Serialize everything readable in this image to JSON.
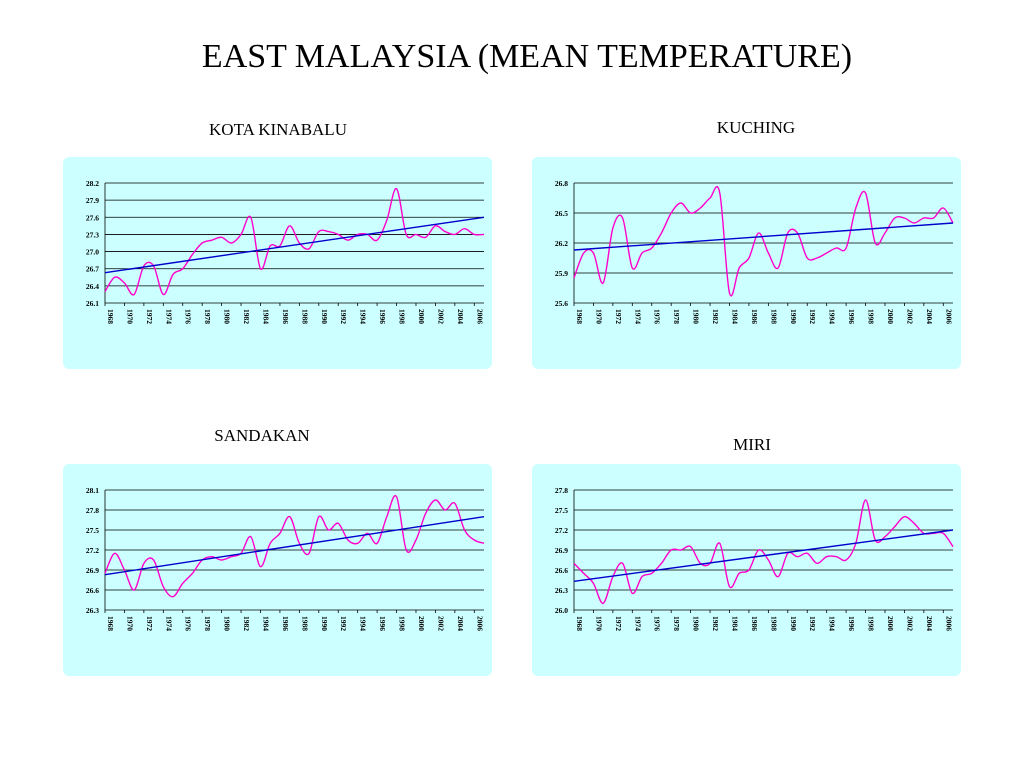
{
  "page": {
    "title": "EAST MALAYSIA (MEAN TEMPERATURE)"
  },
  "chart_data": [
    {
      "type": "line",
      "title": "KOTA KINABALU",
      "ylim": [
        26.1,
        28.2
      ],
      "yticks": [
        "28.2",
        "27.9",
        "27.6",
        "27.3",
        "27.0",
        "26.7",
        "26.4",
        "26.1"
      ],
      "xticks": [
        "1968",
        "1970",
        "1972",
        "1974",
        "1976",
        "1978",
        "1980",
        "1982",
        "1984",
        "1986",
        "1988",
        "1990",
        "1992",
        "1994",
        "1996",
        "1998",
        "2000",
        "2002",
        "2004",
        "2006"
      ],
      "xlim": [
        1968,
        2007
      ],
      "series": [
        {
          "color": "#ff00cc",
          "kind": "data",
          "x": [
            1968,
            1969,
            1970,
            1971,
            1972,
            1973,
            1974,
            1975,
            1976,
            1977,
            1978,
            1979,
            1980,
            1981,
            1982,
            1983,
            1984,
            1985,
            1986,
            1987,
            1988,
            1989,
            1990,
            1991,
            1992,
            1993,
            1994,
            1995,
            1996,
            1997,
            1998,
            1999,
            2000,
            2001,
            2002,
            2003,
            2004,
            2005,
            2006,
            2007
          ],
          "y": [
            26.3,
            26.55,
            26.45,
            26.25,
            26.75,
            26.75,
            26.25,
            26.6,
            26.7,
            26.95,
            27.15,
            27.2,
            27.25,
            27.15,
            27.3,
            27.6,
            26.7,
            27.1,
            27.1,
            27.45,
            27.15,
            27.05,
            27.35,
            27.35,
            27.3,
            27.2,
            27.3,
            27.3,
            27.2,
            27.55,
            28.1,
            27.3,
            27.3,
            27.25,
            27.45,
            27.35,
            27.3,
            27.4,
            27.3,
            27.3
          ]
        },
        {
          "color": "#0000cc",
          "kind": "trend",
          "x": [
            1968,
            2007
          ],
          "y": [
            26.63,
            27.6
          ]
        }
      ]
    },
    {
      "type": "line",
      "title": "KUCHING",
      "ylim": [
        25.6,
        26.8
      ],
      "yticks": [
        "26.8",
        "26.5",
        "26.2",
        "25.9",
        "25.6"
      ],
      "xticks": [
        "1968",
        "1970",
        "1972",
        "1974",
        "1976",
        "1978",
        "1980",
        "1982",
        "1984",
        "1986",
        "1988",
        "1990",
        "1992",
        "1994",
        "1996",
        "1998",
        "2000",
        "2002",
        "2004",
        "2006"
      ],
      "xlim": [
        1968,
        2007
      ],
      "series": [
        {
          "color": "#ff00cc",
          "kind": "data",
          "x": [
            1968,
            1969,
            1970,
            1971,
            1972,
            1973,
            1974,
            1975,
            1976,
            1977,
            1978,
            1979,
            1980,
            1981,
            1982,
            1983,
            1984,
            1985,
            1986,
            1987,
            1988,
            1989,
            1990,
            1991,
            1992,
            1993,
            1994,
            1995,
            1996,
            1997,
            1998,
            1999,
            2000,
            2001,
            2002,
            2003,
            2004,
            2005,
            2006,
            2007
          ],
          "y": [
            25.85,
            26.1,
            26.1,
            25.8,
            26.35,
            26.45,
            25.95,
            26.1,
            26.15,
            26.3,
            26.5,
            26.6,
            26.5,
            26.55,
            26.65,
            26.7,
            25.7,
            25.95,
            26.05,
            26.3,
            26.1,
            25.95,
            26.3,
            26.3,
            26.05,
            26.05,
            26.1,
            26.15,
            26.15,
            26.55,
            26.7,
            26.2,
            26.3,
            26.45,
            26.45,
            26.4,
            26.45,
            26.45,
            26.55,
            26.4
          ]
        },
        {
          "color": "#0000cc",
          "kind": "trend",
          "x": [
            1968,
            2007
          ],
          "y": [
            26.13,
            26.4
          ]
        }
      ]
    },
    {
      "type": "line",
      "title": "SANDAKAN",
      "ylim": [
        26.3,
        28.1
      ],
      "yticks": [
        "28.1",
        "27.8",
        "27.5",
        "27.2",
        "26.9",
        "26.6",
        "26.3"
      ],
      "xticks": [
        "1968",
        "1970",
        "1972",
        "1974",
        "1976",
        "1978",
        "1980",
        "1982",
        "1984",
        "1986",
        "1988",
        "1990",
        "1992",
        "1994",
        "1996",
        "1998",
        "2000",
        "2002",
        "2004",
        "2006"
      ],
      "xlim": [
        1968,
        2007
      ],
      "series": [
        {
          "color": "#ff00cc",
          "kind": "data",
          "x": [
            1968,
            1969,
            1970,
            1971,
            1972,
            1973,
            1974,
            1975,
            1976,
            1977,
            1978,
            1979,
            1980,
            1981,
            1982,
            1983,
            1984,
            1985,
            1986,
            1987,
            1988,
            1989,
            1990,
            1991,
            1992,
            1993,
            1994,
            1995,
            1996,
            1997,
            1998,
            1999,
            2000,
            2001,
            2002,
            2003,
            2004,
            2005,
            2006,
            2007
          ],
          "y": [
            26.85,
            27.15,
            26.9,
            26.6,
            27.0,
            27.05,
            26.65,
            26.5,
            26.7,
            26.85,
            27.05,
            27.1,
            27.05,
            27.1,
            27.15,
            27.4,
            26.95,
            27.3,
            27.45,
            27.7,
            27.3,
            27.15,
            27.7,
            27.5,
            27.6,
            27.35,
            27.3,
            27.45,
            27.3,
            27.7,
            28.0,
            27.2,
            27.35,
            27.75,
            27.95,
            27.8,
            27.9,
            27.5,
            27.35,
            27.3
          ]
        },
        {
          "color": "#0000cc",
          "kind": "trend",
          "x": [
            1968,
            2007
          ],
          "y": [
            26.83,
            27.7
          ]
        }
      ]
    },
    {
      "type": "line",
      "title": "MIRI",
      "ylim": [
        26.0,
        27.8
      ],
      "yticks": [
        "27.8",
        "27.5",
        "27.2",
        "26.9",
        "26.6",
        "26.3",
        "26.0"
      ],
      "xticks": [
        "1968",
        "1970",
        "1972",
        "1974",
        "1976",
        "1978",
        "1980",
        "1982",
        "1984",
        "1986",
        "1988",
        "1990",
        "1992",
        "1994",
        "1996",
        "1998",
        "2000",
        "2002",
        "2004",
        "2006"
      ],
      "xlim": [
        1968,
        2007
      ],
      "series": [
        {
          "color": "#ff00cc",
          "kind": "data",
          "x": [
            1968,
            1969,
            1970,
            1971,
            1972,
            1973,
            1974,
            1975,
            1976,
            1977,
            1978,
            1979,
            1980,
            1981,
            1982,
            1983,
            1984,
            1985,
            1986,
            1987,
            1988,
            1989,
            1990,
            1991,
            1992,
            1993,
            1994,
            1995,
            1996,
            1997,
            1998,
            1999,
            2000,
            2001,
            2002,
            2003,
            2004,
            2005,
            2006,
            2007
          ],
          "y": [
            26.7,
            26.55,
            26.4,
            26.1,
            26.5,
            26.7,
            26.25,
            26.5,
            26.55,
            26.7,
            26.9,
            26.9,
            26.95,
            26.7,
            26.7,
            27.0,
            26.35,
            26.55,
            26.6,
            26.9,
            26.75,
            26.5,
            26.85,
            26.8,
            26.85,
            26.7,
            26.8,
            26.8,
            26.75,
            27.0,
            27.65,
            27.05,
            27.1,
            27.25,
            27.4,
            27.3,
            27.15,
            27.15,
            27.15,
            26.95
          ]
        },
        {
          "color": "#0000cc",
          "kind": "trend",
          "x": [
            1968,
            2007
          ],
          "y": [
            26.43,
            27.2
          ]
        }
      ]
    }
  ]
}
